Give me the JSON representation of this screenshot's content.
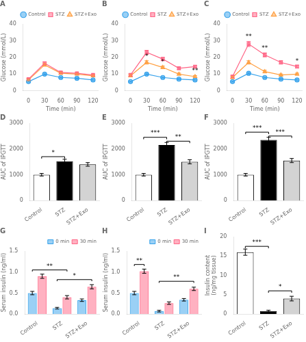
{
  "chart_data": [
    {
      "type": "line",
      "title": "A",
      "x": [
        0,
        30,
        60,
        90,
        120
      ],
      "xlabel": "Time (min)",
      "ylabel": "Glucose (mmol/L)",
      "xlim": [
        -10,
        130
      ],
      "xticks": [
        0,
        30,
        60,
        90,
        120
      ],
      "ylim": [
        0,
        40
      ],
      "yticks": [
        0,
        10,
        20,
        30,
        40
      ],
      "grid": false,
      "legend": "upper right",
      "series": [
        {
          "name": "Control",
          "marker": "circle",
          "values": [
            5.5,
            10.0,
            8.0,
            7.5,
            6.5
          ],
          "errors": [
            0.3,
            0.5,
            0.4,
            0.4,
            0.4
          ]
        },
        {
          "name": "STZ",
          "marker": "square",
          "values": [
            7.0,
            16.5,
            11.0,
            10.5,
            9.5
          ],
          "errors": [
            0.5,
            0.8,
            0.6,
            0.5,
            0.5
          ]
        },
        {
          "name": "STZ+Exo",
          "marker": "triangle",
          "values": [
            6.5,
            15.5,
            10.5,
            10.0,
            9.0
          ],
          "errors": [
            0.5,
            0.8,
            0.6,
            0.5,
            0.5
          ]
        }
      ]
    },
    {
      "type": "line",
      "title": "B",
      "x": [
        0,
        30,
        60,
        90,
        120
      ],
      "xlabel": "Time (min)",
      "ylabel": "Glucose (mmol/L)",
      "xlim": [
        -10,
        130
      ],
      "xticks": [
        0,
        30,
        60,
        90,
        120
      ],
      "ylim": [
        0,
        40
      ],
      "yticks": [
        0,
        10,
        20,
        30,
        40
      ],
      "grid": false,
      "legend": "upper right",
      "series": [
        {
          "name": "Control",
          "marker": "circle",
          "values": [
            5.5,
            10.0,
            8.0,
            7.0,
            6.5
          ],
          "errors": [
            0.3,
            0.5,
            0.4,
            0.4,
            0.4
          ]
        },
        {
          "name": "STZ",
          "marker": "square",
          "values": [
            9.5,
            23.0,
            19.0,
            13.5,
            14.5
          ],
          "errors": [
            0.7,
            1.2,
            1.0,
            0.8,
            0.7
          ]
        },
        {
          "name": "STZ+Exo",
          "marker": "triangle",
          "values": [
            9.0,
            17.0,
            14.0,
            10.0,
            8.5
          ],
          "errors": [
            0.7,
            1.0,
            0.8,
            0.6,
            0.6
          ]
        }
      ],
      "annotations": [
        {
          "x": 30,
          "y": 18.5,
          "text": "*"
        },
        {
          "x": 60,
          "y": 15.5,
          "text": "*"
        },
        {
          "x": 120,
          "y": 10.0,
          "text": "**"
        }
      ]
    },
    {
      "type": "line",
      "title": "C",
      "x": [
        0,
        30,
        60,
        90,
        120
      ],
      "xlabel": "Time (min)",
      "ylabel": "Glucose (mmol/L)",
      "xlim": [
        -10,
        130
      ],
      "xticks": [
        0,
        30,
        60,
        90,
        120
      ],
      "ylim": [
        0,
        40
      ],
      "yticks": [
        0,
        10,
        20,
        30,
        40
      ],
      "grid": false,
      "legend": "upper right",
      "series": [
        {
          "name": "Control",
          "marker": "circle",
          "values": [
            5.5,
            10.5,
            8.0,
            7.0,
            6.5
          ],
          "errors": [
            0.3,
            0.5,
            0.4,
            0.4,
            0.4
          ]
        },
        {
          "name": "STZ",
          "marker": "square",
          "values": [
            8.5,
            28.0,
            21.5,
            17.0,
            14.5
          ],
          "errors": [
            0.8,
            1.5,
            1.2,
            1.0,
            0.9
          ]
        },
        {
          "name": "STZ+Exo",
          "marker": "triangle",
          "values": [
            8.0,
            17.0,
            11.5,
            9.5,
            10.0
          ],
          "errors": [
            0.7,
            1.0,
            0.8,
            0.6,
            0.6
          ]
        }
      ],
      "annotations": [
        {
          "x": 30,
          "y": 30.5,
          "text": "**"
        },
        {
          "x": 60,
          "y": 23.5,
          "text": "**"
        },
        {
          "x": 120,
          "y": 16.0,
          "text": "*"
        }
      ]
    },
    {
      "type": "bar",
      "title": "D",
      "categories": [
        "Control",
        "STZ",
        "STZ+Exo"
      ],
      "values": [
        1000,
        1520,
        1400
      ],
      "errors": [
        50,
        80,
        70
      ],
      "colors": [
        "white",
        "black",
        "lightgray"
      ],
      "ylabel": "AUC of IPGTT",
      "ylim": [
        0,
        3000
      ],
      "yticks": [
        0,
        1000,
        2000,
        3000
      ],
      "grid": false,
      "brackets": [
        {
          "x1": "Control",
          "x2": "STZ",
          "y": 1700,
          "text": "*"
        }
      ]
    },
    {
      "type": "bar",
      "title": "E",
      "categories": [
        "Control",
        "STZ",
        "STZ+Exo"
      ],
      "values": [
        1000,
        2150,
        1500
      ],
      "errors": [
        50,
        100,
        80
      ],
      "colors": [
        "white",
        "black",
        "lightgray"
      ],
      "ylabel": "AUC of IPGTT",
      "ylim": [
        0,
        3000
      ],
      "yticks": [
        0,
        1000,
        2000,
        3000
      ],
      "grid": false,
      "brackets": [
        {
          "x1": "Control",
          "x2": "STZ",
          "y": 2450,
          "text": "***"
        },
        {
          "x1": "STZ",
          "x2": "STZ+Exo",
          "y": 2300,
          "text": "**"
        }
      ]
    },
    {
      "type": "bar",
      "title": "F",
      "categories": [
        "Control",
        "STZ",
        "STZ+Exo"
      ],
      "values": [
        1000,
        2350,
        1550
      ],
      "errors": [
        50,
        100,
        80
      ],
      "colors": [
        "white",
        "black",
        "lightgray"
      ],
      "ylabel": "AUC of IPGTT",
      "ylim": [
        0,
        3000
      ],
      "yticks": [
        0,
        1000,
        2000,
        3000
      ],
      "grid": false,
      "brackets": [
        {
          "x1": "Control",
          "x2": "STZ",
          "y": 2650,
          "text": "***"
        },
        {
          "x1": "STZ",
          "x2": "STZ+Exo",
          "y": 2500,
          "text": "***"
        }
      ]
    },
    {
      "type": "bar",
      "title": "G",
      "categories": [
        "Control",
        "STZ",
        "STZ+Exo"
      ],
      "series": [
        {
          "name": "0 min",
          "values": [
            0.5,
            0.14,
            0.33
          ],
          "errors": [
            0.04,
            0.02,
            0.03
          ]
        },
        {
          "name": "30 min",
          "values": [
            0.9,
            0.4,
            0.65
          ],
          "errors": [
            0.05,
            0.04,
            0.05
          ]
        }
      ],
      "ylabel": "Serum insulin (ng/ml)",
      "ylim": [
        0,
        1.5
      ],
      "yticks": [
        {
          "value": 0,
          "label": "0.0"
        },
        0.5,
        {
          "value": 1,
          "label": "1.0"
        },
        1.5
      ],
      "grid": false,
      "legend": "upper right",
      "brackets": [
        {
          "x1": "Control",
          "series1": "0 min",
          "x2": "STZ",
          "series2": "30 min",
          "y": 1.05,
          "text": "**"
        },
        {
          "x1": "STZ",
          "series1": "0 min",
          "x2": "STZ+Exo",
          "series2": "30 min",
          "y": 0.82,
          "text": "*"
        }
      ]
    },
    {
      "type": "bar",
      "title": "H",
      "categories": [
        "Control",
        "STZ",
        "STZ+Exo"
      ],
      "series": [
        {
          "name": "0 min",
          "values": [
            0.5,
            0.07,
            0.34
          ],
          "errors": [
            0.04,
            0.02,
            0.03
          ]
        },
        {
          "name": "30 min",
          "values": [
            1.02,
            0.26,
            0.6
          ],
          "errors": [
            0.05,
            0.03,
            0.04
          ]
        }
      ],
      "ylabel": "Serum insulin (ng/ml)",
      "ylim": [
        0,
        1.5
      ],
      "yticks": [
        {
          "value": 0,
          "label": "0.0"
        },
        0.5,
        {
          "value": 1,
          "label": "1.0"
        },
        1.5
      ],
      "grid": false,
      "legend": "upper right",
      "brackets": [
        {
          "x1": "Control",
          "series1": "0 min",
          "x2": "Control",
          "series2": "30 min",
          "y": 1.18,
          "text": "**"
        },
        {
          "x1": "STZ",
          "series1": "0 min",
          "x2": "STZ+Exo",
          "series2": "30 min",
          "y": 0.78,
          "text": "**"
        }
      ]
    },
    {
      "type": "bar",
      "title": "I",
      "categories": [
        "Control",
        "STZ",
        "STZ+Exo"
      ],
      "values": [
        16.0,
        0.8,
        4.0
      ],
      "errors": [
        0.8,
        0.2,
        0.6
      ],
      "colors": [
        "white",
        "black",
        "lightgray"
      ],
      "ylabel": "Insulin content\n(ng/mg tissue)",
      "ylim": [
        0,
        20
      ],
      "yticks": [
        0,
        5,
        10,
        15,
        20
      ],
      "grid": false,
      "brackets": [
        {
          "x1": "Control",
          "x2": "STZ",
          "y": 17.5,
          "text": "***"
        },
        {
          "x1": "STZ",
          "x2": "STZ+Exo",
          "y": 6.0,
          "text": "*"
        }
      ]
    }
  ]
}
